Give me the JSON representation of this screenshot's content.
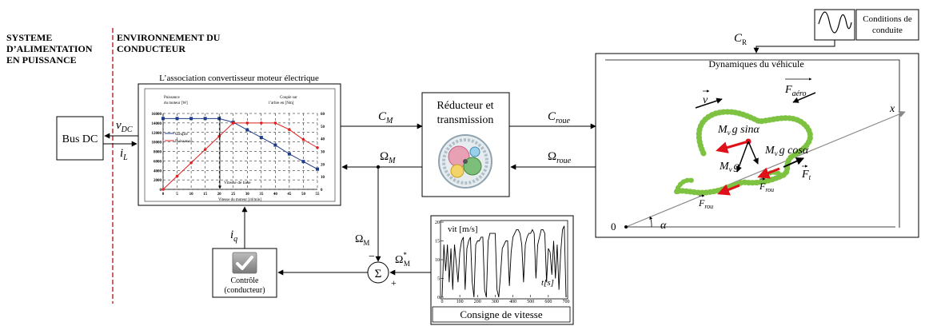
{
  "sections": {
    "left_title": [
      "SYSTEME",
      "D’ALIMENTATION",
      "EN PUISSANCE"
    ],
    "right_title": [
      "ENVIRONNEMENT DU",
      "CONDUCTEUR"
    ]
  },
  "bus_dc": {
    "label": "Bus DC"
  },
  "signals": {
    "v_dc": "v",
    "v_dc_sub": "DC",
    "i_l": "i",
    "i_l_sub": "L",
    "c_m": "C",
    "c_m_sub": "M",
    "omega_m": "Ω",
    "omega_m_sub": "M",
    "c_roue": "C",
    "c_roue_sub": "roue",
    "omega_roue": "Ω",
    "omega_roue_sub": "roue",
    "c_r": "C",
    "c_r_sub": "R",
    "i_q": "i",
    "i_q_sub": "q",
    "omega_m_fb": "Ω",
    "omega_m_fb_sub": "M",
    "omega_m_ref": "Ω",
    "omega_m_ref_sub": "M",
    "omega_m_ref_sup": "*",
    "minus": "−",
    "plus": "+",
    "sigma": "Σ"
  },
  "motor_box": {
    "title": "L’association convertisseur moteur électrique"
  },
  "motor_chart": {
    "chart_data": {
      "type": "line",
      "x": [
        0,
        5,
        10,
        15,
        20,
        25,
        30,
        35,
        40,
        45,
        50,
        55
      ],
      "series": [
        {
          "name": "Couple",
          "axis": "right",
          "values": [
            56,
            56,
            56,
            56,
            56,
            53,
            47,
            41,
            35,
            28,
            22,
            16
          ]
        },
        {
          "name": "Puissance",
          "axis": "left",
          "values": [
            0,
            2800,
            5600,
            8400,
            11200,
            14000,
            14000,
            14000,
            14000,
            12600,
            10500,
            8800
          ]
        }
      ],
      "ylabel_left": [
        "Puissance",
        "du moteur [W]"
      ],
      "ylabel_right": [
        "Couple sur",
        "l’arbre en [Nm]"
      ],
      "xlabel": "Vitesse du moteur [rd/min]",
      "x_ticks": [
        "0",
        "5",
        "10",
        "15",
        "20",
        "25",
        "30",
        "35",
        "40",
        "45",
        "50",
        "55"
      ],
      "y_left_ticks": [
        "0",
        "2000",
        "4000",
        "6000",
        "8000",
        "10000",
        "12000",
        "14000",
        "16000"
      ],
      "y_right_ticks": [
        "0",
        "10",
        "20",
        "30",
        "40",
        "50",
        "60"
      ],
      "ylim_left": [
        0,
        16000
      ],
      "ylim_right": [
        0,
        60
      ],
      "annotation": "Vitesse de base",
      "colors": {
        "Couple": "#1f3c88",
        "Puissance": "#e02020"
      }
    }
  },
  "reducer": {
    "label": [
      "Réducteur et",
      "transmission"
    ]
  },
  "vehicle_dynamics": {
    "title": "Dynamiques du véhicule",
    "x_axis": "x",
    "origin": "0",
    "alpha": "α",
    "labels": {
      "v": "v",
      "f_aero": "F",
      "f_aero_sub": "aéro",
      "mg_sin_a": "g sinα",
      "mg_sin_m": "M",
      "mg_sin_sub": "v",
      "mg_cos_a": "g cosα",
      "mg_cos_m": "M",
      "mg_cos_sub": "v",
      "mg": "g",
      "mg_m": "M",
      "mg_sub": "v",
      "f_rou": "F",
      "f_rou_sub": "rou",
      "f_rou2": "F",
      "f_rou2_sub": "rou",
      "f_t": "F",
      "f_t_sub": "t"
    },
    "colors": {
      "green": "#7ec242",
      "red": "#e0101a"
    }
  },
  "conditions": {
    "label": [
      "Conditions de",
      "conduite"
    ]
  },
  "control": {
    "label": [
      "Contrôle",
      "(conducteur)"
    ]
  },
  "speed_ref": {
    "title": "Consigne de vitesse",
    "ylabel": "vit [m/s]",
    "xlabel": "t[s]",
    "x_ticks": [
      "0",
      "100",
      "200",
      "300",
      "400",
      "500",
      "600",
      "700"
    ],
    "y_ticks": [
      "0",
      "5",
      "10",
      "15",
      "20"
    ],
    "chart_data": {
      "type": "line",
      "xlim": [
        0,
        700
      ],
      "ylim": [
        0,
        20
      ],
      "x": [
        0,
        10,
        20,
        30,
        40,
        50,
        60,
        70,
        80,
        90,
        100,
        110,
        120,
        130,
        140,
        150,
        160,
        170,
        180,
        190,
        200,
        210,
        220,
        230,
        240,
        250,
        260,
        270,
        280,
        290,
        300,
        310,
        320,
        330,
        340,
        350,
        360,
        370,
        380,
        390,
        400,
        410,
        420,
        430,
        440,
        450,
        460,
        470,
        480,
        490,
        500,
        510,
        520,
        530,
        540,
        550,
        560,
        570,
        580,
        590,
        600,
        610,
        620,
        630,
        640,
        650,
        660,
        670,
        680,
        690,
        700
      ],
      "values": [
        0,
        14,
        7,
        14,
        4,
        13,
        2,
        14,
        9,
        4,
        12,
        15,
        16,
        2,
        13,
        15,
        16,
        4,
        0,
        14,
        15,
        15,
        16,
        16,
        2,
        0,
        15,
        17,
        17,
        17,
        17,
        2,
        0,
        6,
        13,
        14,
        15,
        15,
        3,
        12,
        16,
        17,
        18,
        18,
        17,
        14,
        4,
        14,
        16,
        17,
        17,
        18,
        17,
        5,
        14,
        16,
        18,
        18,
        17,
        4,
        13,
        12,
        6,
        15,
        5,
        14,
        2,
        12,
        18,
        19,
        0
      ]
    }
  }
}
